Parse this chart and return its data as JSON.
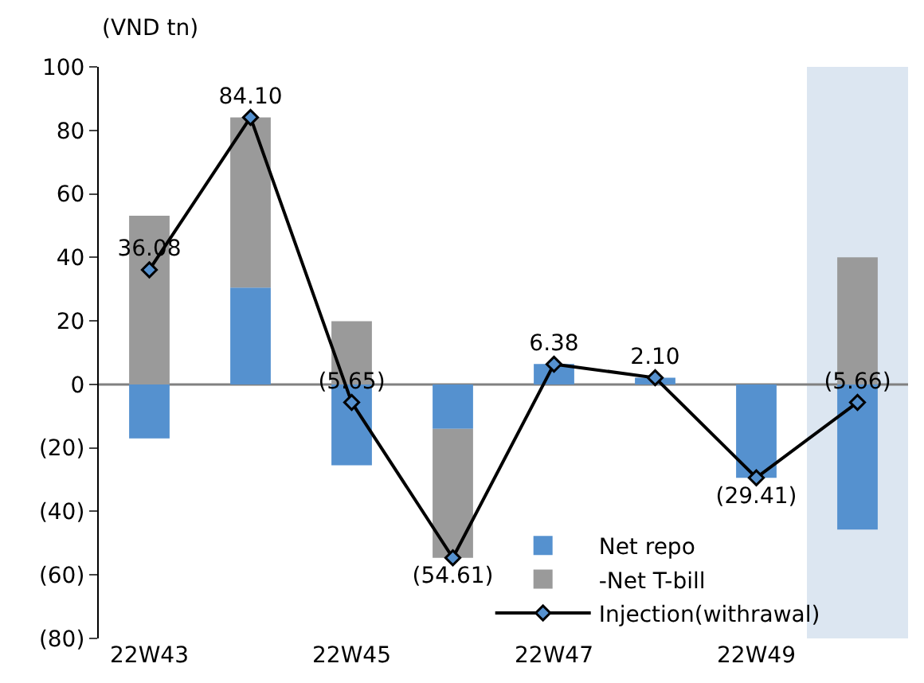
{
  "chart_data": {
    "type": "bar",
    "stacked": true,
    "ylabel": "(VND tn)",
    "categories": [
      "22W43",
      null,
      "22W45",
      null,
      "22W47",
      null,
      "22W49",
      null
    ],
    "series": [
      {
        "name": "Net repo",
        "color": "#5591cf",
        "values": [
          -17,
          30.5,
          -25.5,
          -14,
          6.4,
          2.1,
          -29.4,
          -45.7
        ]
      },
      {
        "name": "-Net T-bill",
        "color": "#9a9a9a",
        "values": [
          53.1,
          53.6,
          19.9,
          -40.6,
          0,
          0,
          0,
          40
        ]
      },
      {
        "name": "Injection(withrawal)",
        "type": "line",
        "color": "#000000",
        "marker": "diamond",
        "values": [
          36.08,
          84.1,
          -5.65,
          -54.61,
          6.38,
          2.1,
          -29.41,
          -5.66
        ],
        "value_labels": [
          "36.08",
          "84.10",
          "(5.65)",
          "(54.61)",
          "6.38",
          "2.10",
          "(29.41)",
          "(5.66)"
        ]
      }
    ],
    "ylim": [
      -80,
      100
    ],
    "yticks": [
      {
        "value": -80,
        "label": "(80)"
      },
      {
        "value": -60,
        "label": "(60)"
      },
      {
        "value": -40,
        "label": "(40)"
      },
      {
        "value": -20,
        "label": "(20)"
      },
      0,
      20,
      40,
      60,
      80,
      100
    ],
    "ref_lines": [
      {
        "axis": "y",
        "value": 0,
        "color": "#808080"
      }
    ],
    "grid": false,
    "legend": "bottom"
  }
}
